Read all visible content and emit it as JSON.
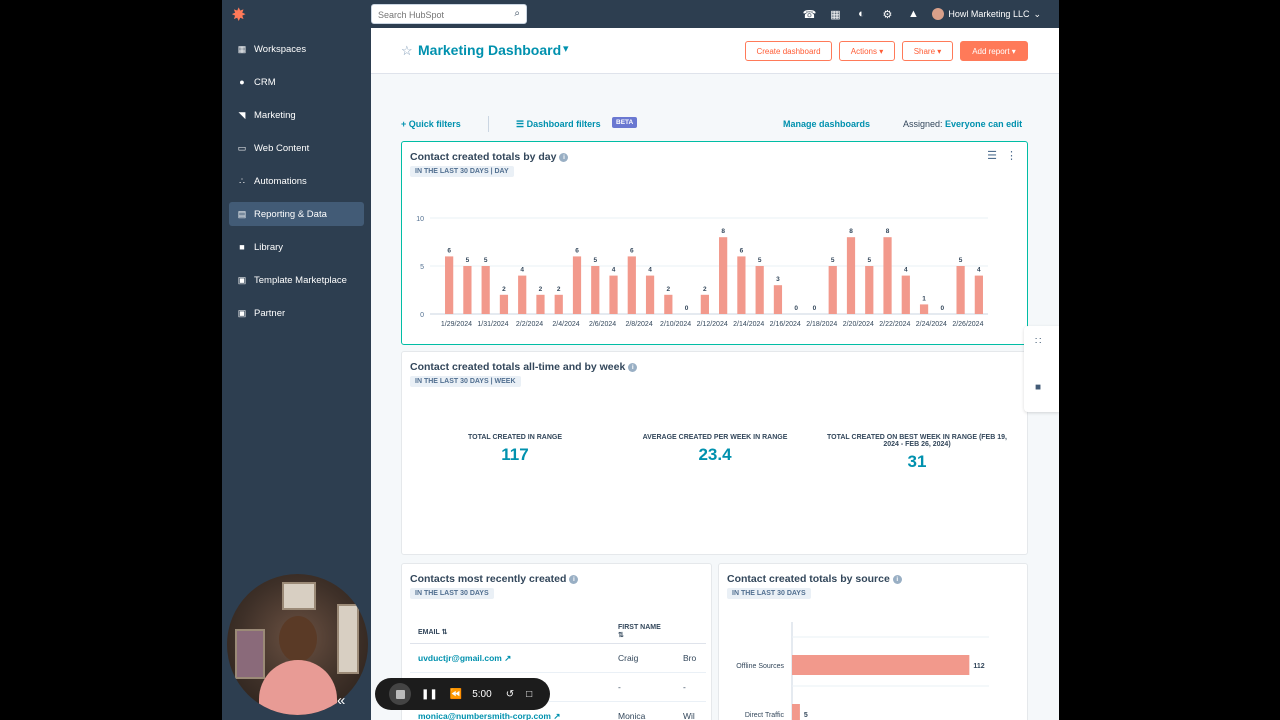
{
  "topbar": {
    "search_placeholder": "Search HubSpot",
    "account_name": "Howl Marketing LLC"
  },
  "sidebar": {
    "items": [
      {
        "label": "Workspaces",
        "icon": "grid-icon"
      },
      {
        "label": "CRM",
        "icon": "person-icon"
      },
      {
        "label": "Marketing",
        "icon": "megaphone-icon"
      },
      {
        "label": "Web Content",
        "icon": "browser-icon"
      },
      {
        "label": "Automations",
        "icon": "flow-icon"
      },
      {
        "label": "Reporting & Data",
        "icon": "report-icon"
      },
      {
        "label": "Library",
        "icon": "folder-icon"
      },
      {
        "label": "Template Marketplace",
        "icon": "store-icon"
      },
      {
        "label": "Partner",
        "icon": "partner-icon"
      }
    ],
    "active": "Reporting & Data"
  },
  "header": {
    "title": "Marketing Dashboard",
    "buttons": {
      "create": "Create dashboard",
      "actions": "Actions",
      "share": "Share",
      "add_report": "Add report"
    }
  },
  "filters": {
    "quick": "Quick filters",
    "dashboard": "Dashboard filters",
    "beta": "BETA",
    "manage": "Manage dashboards",
    "assigned_label": "Assigned:",
    "assigned_value": "Everyone can edit"
  },
  "cards": {
    "by_day": {
      "title": "Contact created totals by day",
      "tag": "IN THE LAST 30 DAYS | DAY"
    },
    "by_week": {
      "title": "Contact created totals all-time and by week",
      "tag": "IN THE LAST 30 DAYS | WEEK",
      "stats": [
        {
          "label": "TOTAL CREATED IN RANGE",
          "value": "117"
        },
        {
          "label": "AVERAGE CREATED PER WEEK IN RANGE",
          "value": "23.4"
        },
        {
          "label": "TOTAL CREATED ON BEST WEEK IN RANGE (FEB 19, 2024 - FEB 26, 2024)",
          "value": "31"
        }
      ]
    },
    "recent": {
      "title": "Contacts most recently created",
      "tag": "IN THE LAST 30 DAYS",
      "columns": [
        "EMAIL",
        "FIRST NAME",
        ""
      ],
      "rows": [
        {
          "email": "uvductjr@gmail.com",
          "first": "Craig",
          "last": "Bro"
        },
        {
          "email": "",
          "first": "-",
          "last": "-"
        },
        {
          "email": "monica@numbersmith-corp.com",
          "first": "Monica",
          "last": "Wil"
        }
      ]
    },
    "source": {
      "title": "Contact created totals by source",
      "tag": "IN THE LAST 30 DAYS"
    }
  },
  "recorder": {
    "time": "5:00"
  },
  "chart_data": [
    {
      "type": "bar",
      "categories": [
        "1/29/2024",
        "1/30/2024",
        "1/31/2024",
        "2/1/2024",
        "2/2/2024",
        "2/3/2024",
        "2/4/2024",
        "2/5/2024",
        "2/6/2024",
        "2/7/2024",
        "2/8/2024",
        "2/9/2024",
        "2/10/2024",
        "2/11/2024",
        "2/12/2024",
        "2/13/2024",
        "2/14/2024",
        "2/15/2024",
        "2/16/2024",
        "2/17/2024",
        "2/18/2024",
        "2/19/2024",
        "2/20/2024",
        "2/21/2024",
        "2/22/2024",
        "2/23/2024",
        "2/24/2024",
        "2/25/2024",
        "2/26/2024",
        "2/27/2024"
      ],
      "tick_labels": [
        "1/29/2024",
        "1/31/2024",
        "2/2/2024",
        "2/4/2024",
        "2/6/2024",
        "2/8/2024",
        "2/10/2024",
        "2/12/2024",
        "2/14/2024",
        "2/16/2024",
        "2/18/2024",
        "2/20/2024",
        "2/22/2024",
        "2/24/2024",
        "2/26/2024"
      ],
      "values": [
        6,
        5,
        5,
        2,
        4,
        2,
        2,
        6,
        5,
        4,
        6,
        4,
        2,
        0,
        2,
        8,
        6,
        5,
        3,
        0,
        0,
        5,
        8,
        5,
        8,
        4,
        1,
        0,
        5,
        4
      ],
      "ylim": [
        0,
        10
      ],
      "yticks": [
        0,
        5,
        10
      ],
      "color": "#f2998c"
    },
    {
      "type": "bar",
      "orientation": "horizontal",
      "categories": [
        "Offline Sources",
        "Direct Traffic"
      ],
      "values": [
        112,
        5
      ],
      "color": "#f2998c"
    }
  ]
}
